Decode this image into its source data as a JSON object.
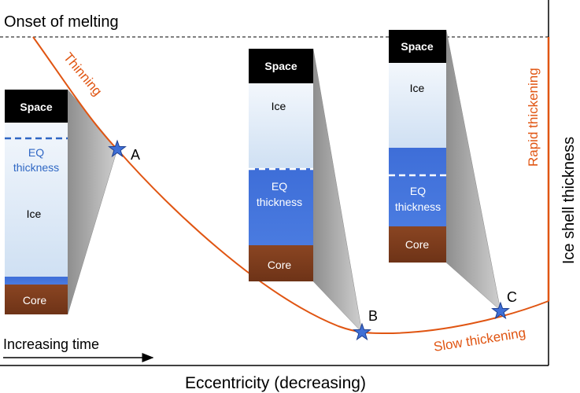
{
  "labels": {
    "onset": "Onset of melting",
    "x_axis": "Eccentricity (decreasing)",
    "y_axis": "Ice shell thickness",
    "time": "Increasing time",
    "thinning": "Thinning",
    "rapid": "Rapid thickening",
    "slow": "Slow thickening"
  },
  "points": [
    {
      "id": "A",
      "label": "A"
    },
    {
      "id": "B",
      "label": "B"
    },
    {
      "id": "C",
      "label": "C"
    }
  ],
  "columns": {
    "A": {
      "space": "Space",
      "eq_line1": "EQ",
      "eq_line2": "thickness",
      "ice": "Ice",
      "core": "Core"
    },
    "B": {
      "space": "Space",
      "ice": "Ice",
      "eq_line1": "EQ",
      "eq_line2": "thickness",
      "core": "Core"
    },
    "C": {
      "space": "Space",
      "ice": "Ice",
      "eq_line1": "EQ",
      "eq_line2": "thickness",
      "core": "Core"
    }
  },
  "colors": {
    "curve": "#e05512",
    "space": "#000000",
    "ice": "#dfeaf7",
    "ocean": "#3f6fd6",
    "core": "#7a3a1c",
    "eq_text": "#2f67c4",
    "star": "#3f6fd6"
  }
}
